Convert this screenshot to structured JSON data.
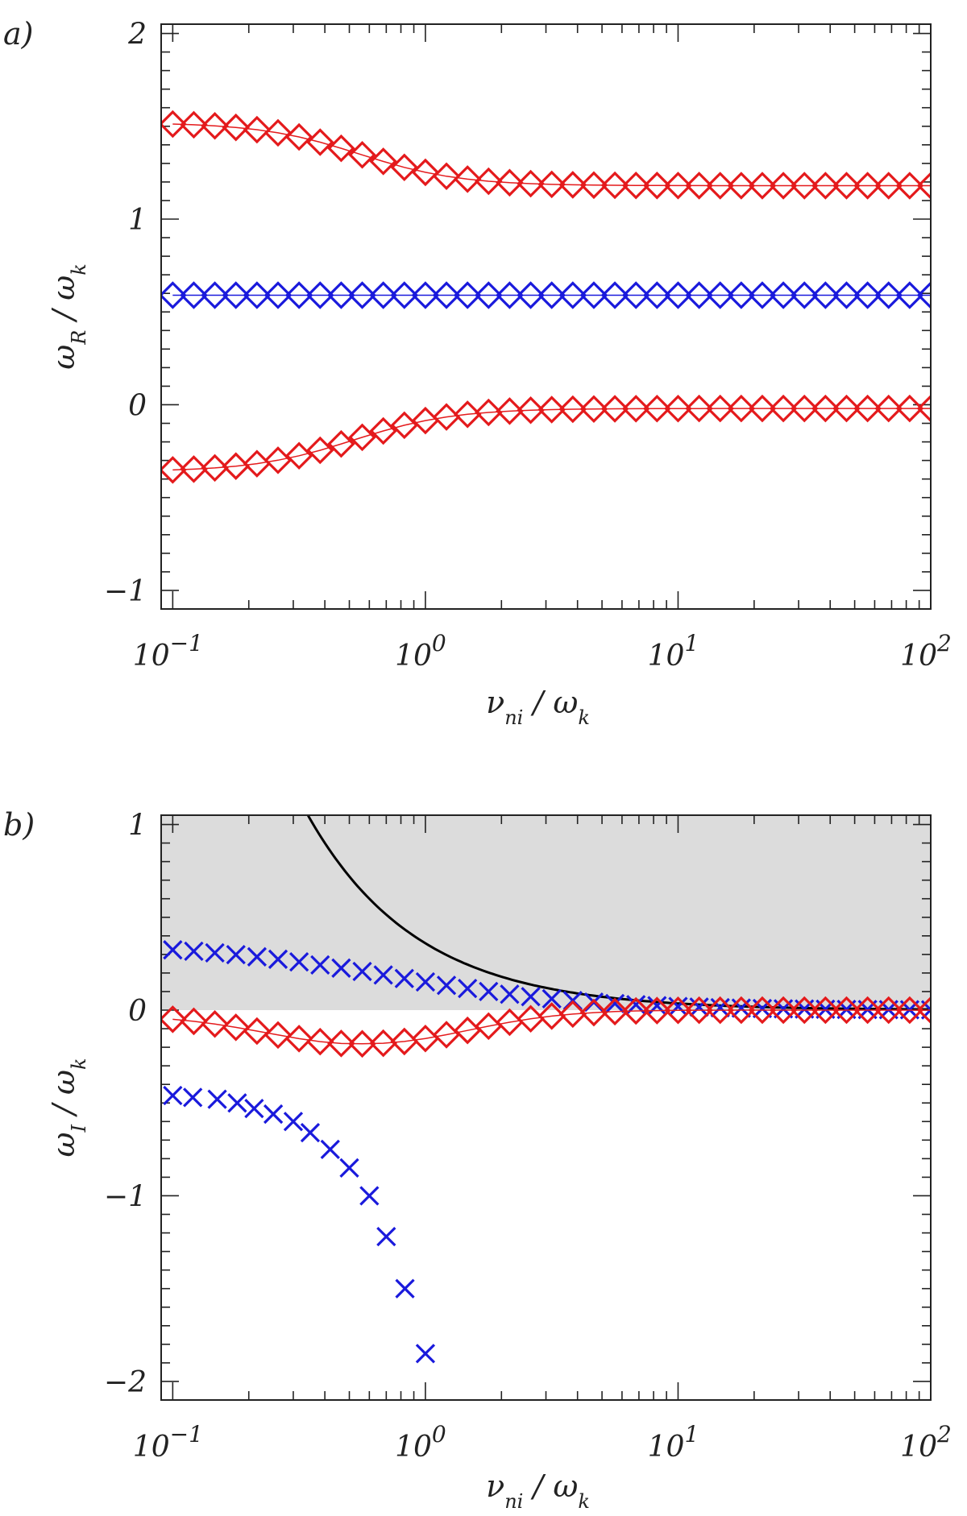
{
  "chart_data": [
    {
      "panel": "a)",
      "type": "scatter",
      "xscale": "log",
      "xlim": [
        0.09,
        100
      ],
      "ylim": [
        -1.1,
        2.05
      ],
      "x_ticks": [
        0.1,
        1,
        10,
        100
      ],
      "x_tick_labels": [
        {
          "base": "10",
          "exp": "−1"
        },
        {
          "base": "10",
          "exp": "0"
        },
        {
          "base": "10",
          "exp": "1"
        },
        {
          "base": "10",
          "exp": "2"
        }
      ],
      "y_ticks": [
        -1,
        0,
        1,
        2
      ],
      "y_tick_labels": [
        "−1",
        "0",
        "1",
        "2"
      ],
      "xlabel": {
        "main": "ν",
        "sub": "ni",
        "sep": " / ",
        "main2": "ω",
        "sub2": "k"
      },
      "ylabel": {
        "main": "ω",
        "sub": "R",
        "sep": " / ",
        "main2": "ω",
        "sub2": "k"
      },
      "series": [
        {
          "color": "#e41a1c",
          "marker": "diamond",
          "curve": "red_high"
        },
        {
          "color": "#1a1adc",
          "marker": "diamond",
          "curve": "blue_const"
        },
        {
          "color": "#e41a1c",
          "marker": "diamond",
          "curve": "red_low"
        }
      ],
      "x_range_points": [
        0.1,
        100
      ],
      "n_points": 37
    },
    {
      "panel": "b)",
      "type": "scatter",
      "xscale": "log",
      "xlim": [
        0.09,
        100
      ],
      "ylim": [
        -2.1,
        1.05
      ],
      "x_ticks": [
        0.1,
        1,
        10,
        100
      ],
      "x_tick_labels": [
        {
          "base": "10",
          "exp": "−1"
        },
        {
          "base": "10",
          "exp": "0"
        },
        {
          "base": "10",
          "exp": "1"
        },
        {
          "base": "10",
          "exp": "2"
        }
      ],
      "y_ticks": [
        -2,
        -1,
        0,
        1
      ],
      "y_tick_labels": [
        "−2",
        "−1",
        "0",
        "1"
      ],
      "xlabel": {
        "main": "ν",
        "sub": "ni",
        "sep": " / ",
        "main2": "ω",
        "sub2": "k"
      },
      "ylabel": {
        "main": "ω",
        "sub": "I",
        "sep": " / ",
        "main2": "ω",
        "sub2": "k"
      },
      "shaded_region": {
        "y_from": 0,
        "y_to": 1.05,
        "color": "#dcdcdc"
      },
      "reference_curve": {
        "color": "#000000",
        "formula": "0.36 / x",
        "note": "y = 0.36/x"
      },
      "series": [
        {
          "color": "#1a1adc",
          "marker": "x",
          "curve": "blue_upper"
        },
        {
          "color": "#e41a1c",
          "marker": "diamond",
          "curve": "red_mid"
        },
        {
          "color": "#1a1adc",
          "marker": "x",
          "curve": "blue_lower",
          "x_points": [
            0.1,
            0.12,
            0.15,
            0.18,
            0.21,
            0.25,
            0.3,
            0.35,
            0.42,
            0.5,
            0.6,
            0.7,
            0.83,
            1.0
          ],
          "values": [
            -0.46,
            -0.47,
            -0.48,
            -0.5,
            -0.53,
            -0.56,
            -0.6,
            -0.66,
            -0.75,
            -0.85,
            -1.0,
            -1.22,
            -1.5,
            -1.85
          ]
        }
      ],
      "x_range_points": [
        0.1,
        100
      ],
      "n_points": 37
    }
  ]
}
